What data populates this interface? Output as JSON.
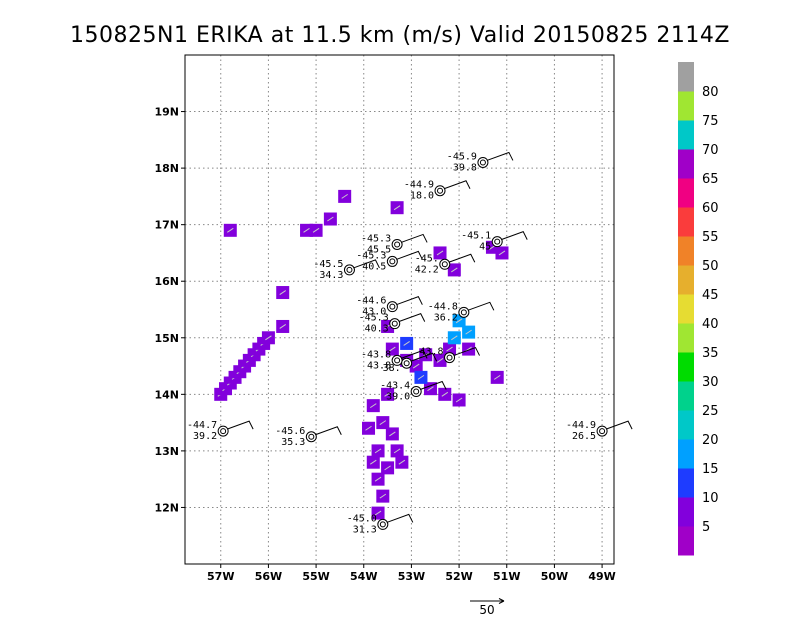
{
  "title": "150825N1 ERIKA at 11.5 km (m/s) Valid 20150825 2114Z",
  "chart_data": {
    "type": "map",
    "xlim": [
      -57.75,
      -48.75
    ],
    "ylim": [
      11.0,
      20.0
    ],
    "x_ticks": [
      {
        "value": -57,
        "label": "57W"
      },
      {
        "value": -56,
        "label": "56W"
      },
      {
        "value": -55,
        "label": "55W"
      },
      {
        "value": -54,
        "label": "54W"
      },
      {
        "value": -53,
        "label": "53W"
      },
      {
        "value": -52,
        "label": "52W"
      },
      {
        "value": -51,
        "label": "51W"
      },
      {
        "value": -50,
        "label": "50W"
      },
      {
        "value": -49,
        "label": "49W"
      }
    ],
    "y_ticks": [
      {
        "value": 12,
        "label": "12N"
      },
      {
        "value": 13,
        "label": "13N"
      },
      {
        "value": 14,
        "label": "14N"
      },
      {
        "value": 15,
        "label": "15N"
      },
      {
        "value": 16,
        "label": "16N"
      },
      {
        "value": 17,
        "label": "17N"
      },
      {
        "value": 18,
        "label": "18N"
      },
      {
        "value": 19,
        "label": "19N"
      }
    ],
    "grid": true,
    "colorbar": {
      "labels": [
        "5",
        "10",
        "15",
        "20",
        "25",
        "30",
        "35",
        "40",
        "45",
        "50",
        "55",
        "60",
        "65",
        "70",
        "75",
        "80"
      ],
      "colors": [
        "#a000c8",
        "#8200dc",
        "#1e3cff",
        "#00a0ff",
        "#00c8c8",
        "#00d28c",
        "#00dc00",
        "#a0e632",
        "#e6dc32",
        "#e6af2d",
        "#f08228",
        "#fa3c3c",
        "#f00082",
        "#a000c8",
        "#00c8c8",
        "#a0e632",
        "#a0a0a0"
      ]
    },
    "wind_cells": [
      {
        "lon": -57.0,
        "lat": 14.0,
        "v": 7
      },
      {
        "lon": -56.9,
        "lat": 14.1,
        "v": 7
      },
      {
        "lon": -56.8,
        "lat": 14.2,
        "v": 7
      },
      {
        "lon": -56.7,
        "lat": 14.3,
        "v": 7
      },
      {
        "lon": -56.6,
        "lat": 14.4,
        "v": 7
      },
      {
        "lon": -56.5,
        "lat": 14.5,
        "v": 7
      },
      {
        "lon": -56.4,
        "lat": 14.6,
        "v": 7
      },
      {
        "lon": -56.3,
        "lat": 14.7,
        "v": 7
      },
      {
        "lon": -56.2,
        "lat": 14.8,
        "v": 7
      },
      {
        "lon": -56.1,
        "lat": 14.9,
        "v": 7
      },
      {
        "lon": -56.0,
        "lat": 15.0,
        "v": 7
      },
      {
        "lon": -55.7,
        "lat": 15.2,
        "v": 7
      },
      {
        "lon": -55.7,
        "lat": 15.8,
        "v": 7
      },
      {
        "lon": -56.8,
        "lat": 16.9,
        "v": 7
      },
      {
        "lon": -55.2,
        "lat": 16.9,
        "v": 7
      },
      {
        "lon": -55.0,
        "lat": 16.9,
        "v": 7
      },
      {
        "lon": -54.7,
        "lat": 17.1,
        "v": 7
      },
      {
        "lon": -54.4,
        "lat": 17.5,
        "v": 7
      },
      {
        "lon": -53.3,
        "lat": 17.3,
        "v": 7
      },
      {
        "lon": -52.4,
        "lat": 16.5,
        "v": 7
      },
      {
        "lon": -52.1,
        "lat": 16.2,
        "v": 7
      },
      {
        "lon": -51.3,
        "lat": 16.6,
        "v": 7
      },
      {
        "lon": -51.1,
        "lat": 16.5,
        "v": 7
      },
      {
        "lon": -53.5,
        "lat": 15.2,
        "v": 7
      },
      {
        "lon": -53.4,
        "lat": 14.8,
        "v": 7
      },
      {
        "lon": -53.1,
        "lat": 14.6,
        "v": 7
      },
      {
        "lon": -52.9,
        "lat": 14.5,
        "v": 8
      },
      {
        "lon": -52.7,
        "lat": 14.7,
        "v": 8
      },
      {
        "lon": -52.4,
        "lat": 14.6,
        "v": 8
      },
      {
        "lon": -52.2,
        "lat": 14.8,
        "v": 8
      },
      {
        "lon": -51.8,
        "lat": 14.8,
        "v": 7
      },
      {
        "lon": -51.2,
        "lat": 14.3,
        "v": 7
      },
      {
        "lon": -52.6,
        "lat": 14.1,
        "v": 8
      },
      {
        "lon": -52.3,
        "lat": 14.0,
        "v": 7
      },
      {
        "lon": -52.0,
        "lat": 13.9,
        "v": 7
      },
      {
        "lon": -53.5,
        "lat": 14.0,
        "v": 7
      },
      {
        "lon": -53.8,
        "lat": 13.8,
        "v": 7
      },
      {
        "lon": -53.6,
        "lat": 13.5,
        "v": 7
      },
      {
        "lon": -53.9,
        "lat": 13.4,
        "v": 7
      },
      {
        "lon": -53.4,
        "lat": 13.3,
        "v": 7
      },
      {
        "lon": -53.7,
        "lat": 13.0,
        "v": 7
      },
      {
        "lon": -53.3,
        "lat": 13.0,
        "v": 7
      },
      {
        "lon": -53.8,
        "lat": 12.8,
        "v": 7
      },
      {
        "lon": -53.5,
        "lat": 12.7,
        "v": 7
      },
      {
        "lon": -53.2,
        "lat": 12.8,
        "v": 7
      },
      {
        "lon": -53.7,
        "lat": 12.5,
        "v": 7
      },
      {
        "lon": -53.6,
        "lat": 12.2,
        "v": 8
      },
      {
        "lon": -53.7,
        "lat": 11.9,
        "v": 8
      },
      {
        "lon": -52.0,
        "lat": 15.3,
        "v": 15
      },
      {
        "lon": -51.8,
        "lat": 15.1,
        "v": 15
      },
      {
        "lon": -52.1,
        "lat": 15.0,
        "v": 15
      },
      {
        "lon": -52.8,
        "lat": 14.3,
        "v": 12
      },
      {
        "lon": -53.1,
        "lat": 14.9,
        "v": 12
      }
    ],
    "storm_points": [
      {
        "lon": -51.5,
        "lat": 18.1,
        "l1": "-45.9",
        "l2": "39.8"
      },
      {
        "lon": -52.4,
        "lat": 17.6,
        "l1": "-44.9",
        "l2": "18.0"
      },
      {
        "lon": -53.3,
        "lat": 16.65,
        "l1": "-45.3",
        "l2": "45.5"
      },
      {
        "lon": -51.2,
        "lat": 16.7,
        "l1": "-45.1",
        "l2": "45"
      },
      {
        "lon": -53.4,
        "lat": 16.35,
        "l1": "-45.3",
        "l2": "40.5"
      },
      {
        "lon": -52.3,
        "lat": 16.3,
        "l1": "-45.",
        "l2": "42.2"
      },
      {
        "lon": -54.3,
        "lat": 16.2,
        "l1": "-45.5",
        "l2": "34.3"
      },
      {
        "lon": -53.4,
        "lat": 15.55,
        "l1": "-44.6",
        "l2": "43.0"
      },
      {
        "lon": -51.9,
        "lat": 15.45,
        "l1": "-44.8",
        "l2": "36.2"
      },
      {
        "lon": -53.35,
        "lat": 15.25,
        "l1": "-45.3",
        "l2": "40.3"
      },
      {
        "lon": -52.2,
        "lat": 14.65,
        "l1": "43.8",
        "l2": ""
      },
      {
        "lon": -53.3,
        "lat": 14.6,
        "l1": "-43.8",
        "l2": "43.8"
      },
      {
        "lon": -53.1,
        "lat": 14.55,
        "l1": "",
        "l2": "38."
      },
      {
        "lon": -52.9,
        "lat": 14.05,
        "l1": "-43.4",
        "l2": "39.0"
      },
      {
        "lon": -56.95,
        "lat": 13.35,
        "l1": "-44.7",
        "l2": "39.2"
      },
      {
        "lon": -55.1,
        "lat": 13.25,
        "l1": "-45.6",
        "l2": "35.3"
      },
      {
        "lon": -49.0,
        "lat": 13.35,
        "l1": "-44.9",
        "l2": "26.5"
      },
      {
        "lon": -53.6,
        "lat": 11.7,
        "l1": "-45.0",
        "l2": "31.3"
      }
    ],
    "reference_vector": {
      "label": "50"
    }
  }
}
